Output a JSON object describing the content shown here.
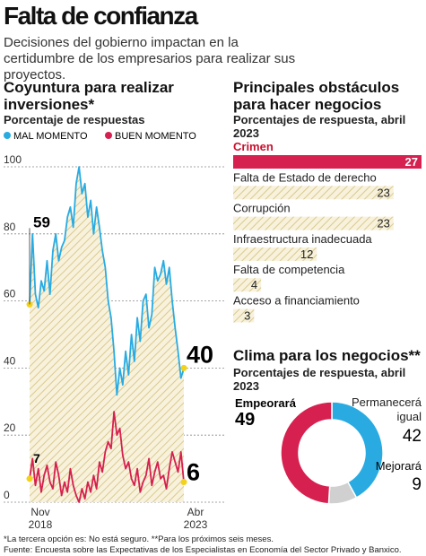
{
  "header": {
    "title": "Falta de confianza",
    "subtitle": "Decisiones del gobierno impactan en la certidumbre de los empresarios para realizar sus proyectos."
  },
  "chart_data": [
    {
      "type": "line",
      "title": "Coyuntura para realizar inversiones*",
      "subtitle": "Porcentaje de respuestas",
      "categories": [
        "Nov 2018",
        null,
        null,
        null,
        null,
        null,
        null,
        null,
        null,
        null,
        null,
        null,
        null,
        null,
        null,
        null,
        null,
        null,
        null,
        null,
        null,
        null,
        null,
        null,
        null,
        null,
        null,
        null,
        null,
        null,
        null,
        null,
        null,
        null,
        null,
        null,
        null,
        null,
        null,
        null,
        null,
        null,
        null,
        null,
        null,
        null,
        null,
        null,
        null,
        null,
        null,
        null,
        null,
        "Abr 2023"
      ],
      "series": [
        {
          "name": "MAL MOMENTO",
          "color": "#29abe2",
          "values": [
            59,
            80,
            62,
            58,
            66,
            63,
            72,
            62,
            75,
            80,
            72,
            76,
            78,
            85,
            88,
            82,
            95,
            100,
            92,
            95,
            85,
            90,
            80,
            88,
            82,
            75,
            70,
            60,
            55,
            45,
            32,
            40,
            35,
            45,
            38,
            50,
            42,
            55,
            48,
            60,
            62,
            52,
            56,
            70,
            66,
            68,
            72,
            65,
            70,
            60,
            52,
            45,
            37,
            40
          ]
        },
        {
          "name": "BUEN MOMENTO",
          "color": "#d6204f",
          "values": [
            7,
            13,
            5,
            10,
            3,
            8,
            11,
            6,
            4,
            12,
            8,
            2,
            6,
            3,
            10,
            5,
            2,
            0,
            4,
            1,
            6,
            3,
            8,
            4,
            12,
            9,
            15,
            18,
            16,
            27,
            20,
            22,
            14,
            10,
            12,
            7,
            5,
            10,
            3,
            6,
            8,
            13,
            5,
            9,
            12,
            7,
            8,
            4,
            10,
            15,
            12,
            9,
            15,
            6
          ]
        }
      ],
      "ylim": [
        0,
        100
      ],
      "yticks": [
        0,
        20,
        40,
        60,
        80,
        100
      ],
      "grid": true
    },
    {
      "type": "hbar",
      "title": "Principales obstáculos para hacer negocios",
      "subtitle": "Porcentajes de respuesta, abril 2023",
      "categories": [
        "Crimen",
        "Falta de Estado de derecho",
        "Corrupción",
        "Infraestructura inadecuada",
        "Falta de competencia",
        "Acceso a financiamiento"
      ],
      "values": [
        27,
        23,
        23,
        12,
        4,
        3
      ],
      "colors": [
        "#d6204f",
        "hatch",
        "hatch",
        "hatch",
        "hatch",
        "hatch"
      ]
    },
    {
      "type": "pie",
      "title": "Clima para los negocios**",
      "subtitle": "Porcentajes de respuesta, abril 2023",
      "categories": [
        "Empeorará",
        "Permanecerá igual",
        "Mejorará"
      ],
      "values": [
        49,
        42,
        9
      ],
      "colors": [
        "#d6204f",
        "#29abe2",
        "#d0d0d0"
      ]
    }
  ],
  "notes": [
    "*La tercera opción es: No está seguro. **Para los próximos seis meses.",
    "Fuente: Encuesta sobre las Expectativas de los Especialistas en Economía del Sector Privado y Banxico."
  ]
}
